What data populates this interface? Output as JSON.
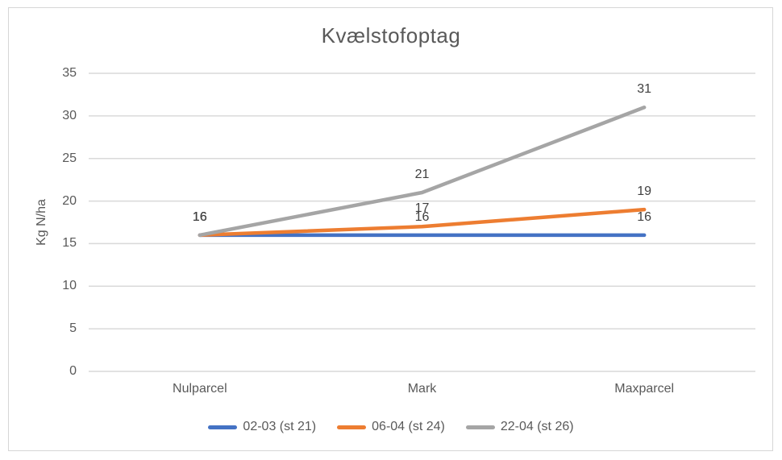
{
  "chart_data": {
    "type": "line",
    "title": "Kvælstofoptag",
    "ylabel": "Kg N/ha",
    "xlabel": "",
    "categories": [
      "Nulparcel",
      "Mark",
      "Maxparcel"
    ],
    "series": [
      {
        "name": "02-03 (st 21)",
        "color": "#4472C4",
        "values": [
          16,
          16,
          16
        ]
      },
      {
        "name": "06-04 (st 24)",
        "color": "#ED7D31",
        "values": [
          16,
          17,
          19
        ]
      },
      {
        "name": "22-04 (st 26)",
        "color": "#A5A5A5",
        "values": [
          16,
          21,
          31
        ]
      }
    ],
    "y_ticks": [
      0,
      5,
      10,
      15,
      20,
      25,
      30,
      35
    ],
    "ylim": [
      0,
      35
    ],
    "grid": true,
    "data_labels": true,
    "legend_position": "bottom"
  },
  "colors": {
    "title_text": "#595959",
    "axis_text": "#595959",
    "data_label_text": "#404040",
    "gridline": "#D9D9D9",
    "chart_border": "#D6D6D6",
    "background": "#FFFFFF"
  }
}
